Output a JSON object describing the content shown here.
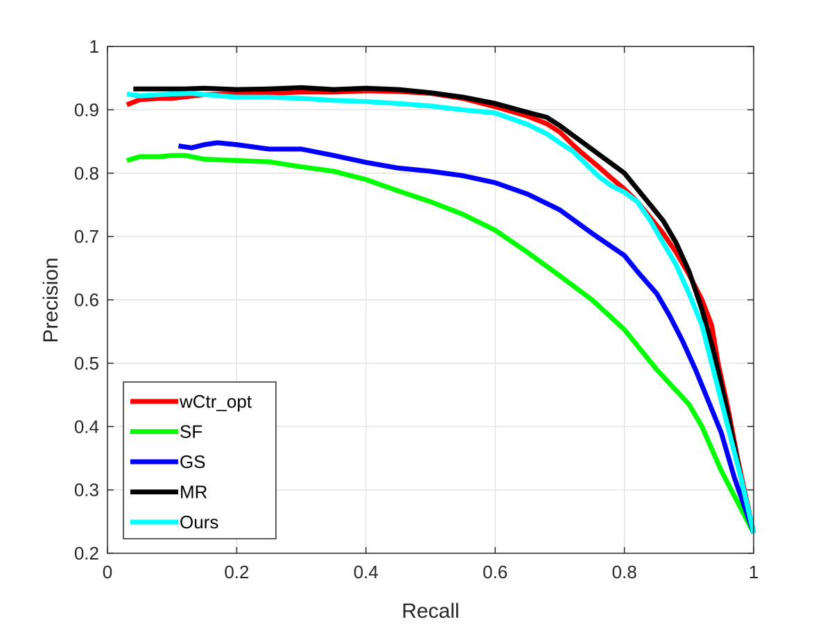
{
  "chart_data": {
    "type": "line",
    "title": "",
    "xlabel": "Recall",
    "ylabel": "Precision",
    "xlim": [
      0,
      1
    ],
    "ylim": [
      0.2,
      1
    ],
    "xticks": [
      "0",
      "0.2",
      "0.4",
      "0.6",
      "0.8",
      "1"
    ],
    "yticks": [
      "0.2",
      "0.3",
      "0.4",
      "0.5",
      "0.6",
      "0.7",
      "0.8",
      "0.9",
      "1"
    ],
    "grid": true,
    "legend_position": "bottom-left",
    "series": [
      {
        "name": "wCtr_opt",
        "color": "#ff0000",
        "points": [
          [
            0.03,
            0.908
          ],
          [
            0.05,
            0.916
          ],
          [
            0.08,
            0.918
          ],
          [
            0.1,
            0.918
          ],
          [
            0.15,
            0.924
          ],
          [
            0.2,
            0.925
          ],
          [
            0.25,
            0.926
          ],
          [
            0.3,
            0.928
          ],
          [
            0.35,
            0.928
          ],
          [
            0.4,
            0.93
          ],
          [
            0.45,
            0.929
          ],
          [
            0.5,
            0.926
          ],
          [
            0.55,
            0.918
          ],
          [
            0.6,
            0.905
          ],
          [
            0.65,
            0.89
          ],
          [
            0.68,
            0.878
          ],
          [
            0.7,
            0.865
          ],
          [
            0.72,
            0.845
          ],
          [
            0.74,
            0.827
          ],
          [
            0.76,
            0.81
          ],
          [
            0.78,
            0.792
          ],
          [
            0.8,
            0.775
          ],
          [
            0.82,
            0.755
          ],
          [
            0.84,
            0.73
          ],
          [
            0.86,
            0.705
          ],
          [
            0.88,
            0.675
          ],
          [
            0.9,
            0.64
          ],
          [
            0.92,
            0.6
          ],
          [
            0.935,
            0.56
          ],
          [
            0.945,
            0.5
          ],
          [
            0.96,
            0.43
          ],
          [
            0.975,
            0.35
          ],
          [
            1.0,
            0.232
          ]
        ]
      },
      {
        "name": "SF",
        "color": "#00ff00",
        "points": [
          [
            0.03,
            0.82
          ],
          [
            0.05,
            0.826
          ],
          [
            0.08,
            0.826
          ],
          [
            0.1,
            0.828
          ],
          [
            0.12,
            0.828
          ],
          [
            0.15,
            0.822
          ],
          [
            0.2,
            0.82
          ],
          [
            0.25,
            0.818
          ],
          [
            0.3,
            0.81
          ],
          [
            0.35,
            0.803
          ],
          [
            0.4,
            0.79
          ],
          [
            0.45,
            0.772
          ],
          [
            0.5,
            0.755
          ],
          [
            0.55,
            0.735
          ],
          [
            0.6,
            0.71
          ],
          [
            0.65,
            0.675
          ],
          [
            0.7,
            0.638
          ],
          [
            0.75,
            0.6
          ],
          [
            0.8,
            0.553
          ],
          [
            0.85,
            0.49
          ],
          [
            0.9,
            0.435
          ],
          [
            0.92,
            0.4
          ],
          [
            0.95,
            0.33
          ],
          [
            1.0,
            0.232
          ]
        ]
      },
      {
        "name": "GS",
        "color": "#0000ff",
        "points": [
          [
            0.11,
            0.843
          ],
          [
            0.13,
            0.84
          ],
          [
            0.15,
            0.845
          ],
          [
            0.17,
            0.848
          ],
          [
            0.2,
            0.845
          ],
          [
            0.25,
            0.838
          ],
          [
            0.3,
            0.838
          ],
          [
            0.35,
            0.828
          ],
          [
            0.4,
            0.817
          ],
          [
            0.45,
            0.808
          ],
          [
            0.5,
            0.803
          ],
          [
            0.55,
            0.796
          ],
          [
            0.6,
            0.785
          ],
          [
            0.65,
            0.767
          ],
          [
            0.7,
            0.742
          ],
          [
            0.75,
            0.705
          ],
          [
            0.8,
            0.67
          ],
          [
            0.82,
            0.645
          ],
          [
            0.85,
            0.61
          ],
          [
            0.87,
            0.575
          ],
          [
            0.89,
            0.535
          ],
          [
            0.91,
            0.49
          ],
          [
            0.93,
            0.44
          ],
          [
            0.95,
            0.39
          ],
          [
            0.97,
            0.32
          ],
          [
            1.0,
            0.232
          ]
        ]
      },
      {
        "name": "MR",
        "color": "#000000",
        "points": [
          [
            0.04,
            0.933
          ],
          [
            0.08,
            0.933
          ],
          [
            0.12,
            0.933
          ],
          [
            0.15,
            0.934
          ],
          [
            0.2,
            0.932
          ],
          [
            0.25,
            0.933
          ],
          [
            0.3,
            0.935
          ],
          [
            0.35,
            0.932
          ],
          [
            0.4,
            0.934
          ],
          [
            0.45,
            0.932
          ],
          [
            0.5,
            0.927
          ],
          [
            0.55,
            0.92
          ],
          [
            0.6,
            0.91
          ],
          [
            0.65,
            0.896
          ],
          [
            0.68,
            0.888
          ],
          [
            0.7,
            0.875
          ],
          [
            0.72,
            0.86
          ],
          [
            0.74,
            0.845
          ],
          [
            0.76,
            0.83
          ],
          [
            0.78,
            0.815
          ],
          [
            0.8,
            0.8
          ],
          [
            0.82,
            0.775
          ],
          [
            0.84,
            0.75
          ],
          [
            0.86,
            0.725
          ],
          [
            0.88,
            0.69
          ],
          [
            0.9,
            0.645
          ],
          [
            0.92,
            0.585
          ],
          [
            0.94,
            0.51
          ],
          [
            0.96,
            0.42
          ],
          [
            0.98,
            0.32
          ],
          [
            1.0,
            0.232
          ]
        ]
      },
      {
        "name": "Ours",
        "color": "#00ffff",
        "points": [
          [
            0.03,
            0.925
          ],
          [
            0.05,
            0.922
          ],
          [
            0.1,
            0.925
          ],
          [
            0.13,
            0.926
          ],
          [
            0.15,
            0.924
          ],
          [
            0.2,
            0.92
          ],
          [
            0.25,
            0.92
          ],
          [
            0.3,
            0.918
          ],
          [
            0.35,
            0.915
          ],
          [
            0.4,
            0.913
          ],
          [
            0.45,
            0.91
          ],
          [
            0.5,
            0.906
          ],
          [
            0.55,
            0.9
          ],
          [
            0.6,
            0.895
          ],
          [
            0.65,
            0.877
          ],
          [
            0.68,
            0.862
          ],
          [
            0.7,
            0.848
          ],
          [
            0.72,
            0.835
          ],
          [
            0.74,
            0.815
          ],
          [
            0.76,
            0.795
          ],
          [
            0.78,
            0.78
          ],
          [
            0.8,
            0.77
          ],
          [
            0.82,
            0.755
          ],
          [
            0.84,
            0.725
          ],
          [
            0.86,
            0.69
          ],
          [
            0.88,
            0.655
          ],
          [
            0.9,
            0.61
          ],
          [
            0.92,
            0.56
          ],
          [
            0.94,
            0.48
          ],
          [
            0.96,
            0.4
          ],
          [
            0.98,
            0.32
          ],
          [
            1.0,
            0.232
          ]
        ]
      }
    ]
  }
}
